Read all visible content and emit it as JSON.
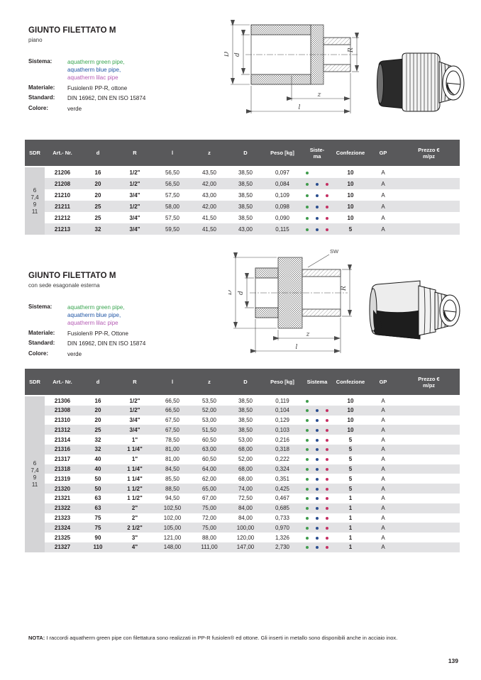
{
  "colors": {
    "header_bg": "#59595b",
    "row_alt": "#e2e2e4",
    "sdr_col": "#d4d4d6",
    "dot_green": "#3f9c4c",
    "dot_blue": "#2a4d8f",
    "dot_red": "#c52f63"
  },
  "labels": {
    "D": "D",
    "d": "d",
    "R": "R",
    "z": "z",
    "l": "l",
    "sw": "SW"
  },
  "note": {
    "label": "NOTA:",
    "text": " I raccordi aquatherm green pipe con filettatura sono realizzati in PP-R fusiolen® ed ottone. Gli inserti in metallo sono disponibili anche in acciaio inox."
  },
  "page_number": "139",
  "sections": [
    {
      "title": "GIUNTO FILETTATO M",
      "subtitle": "piano",
      "info": [
        {
          "label": "Sistema:",
          "lines": [
            {
              "text": "aquatherm green pipe,",
              "color": "#3aa551"
            },
            {
              "text": "aquatherm blue pipe,",
              "color": "#2156a5"
            },
            {
              "text": "aquatherm lilac pipe",
              "color": "#b55cb4"
            }
          ]
        },
        {
          "label": "Materiale:",
          "lines": [
            {
              "text": "Fusiolen® PP-R, ottone",
              "color": "#231f20"
            }
          ]
        },
        {
          "label": "Standard:",
          "lines": [
            {
              "text": "DIN 16962, DIN EN ISO 15874",
              "color": "#231f20"
            }
          ]
        },
        {
          "label": "Colore:",
          "lines": [
            {
              "text": "verde",
              "color": "#231f20"
            }
          ]
        }
      ],
      "table": {
        "headers": [
          [
            "SDR"
          ],
          [
            "Art.- Nr."
          ],
          [
            "d"
          ],
          [
            "R"
          ],
          [
            "l"
          ],
          [
            "z"
          ],
          [
            "D"
          ],
          [
            "Peso [kg]"
          ],
          [
            "Siste-",
            "ma"
          ],
          [
            "Confezione"
          ],
          [
            "GP"
          ],
          [
            "Prezzo €",
            "m/pz"
          ]
        ],
        "sdr_values": [
          "6",
          "7,4",
          "9",
          "11"
        ],
        "rows": [
          {
            "art": "21206",
            "d": "16",
            "R": "1/2\"",
            "l": "56,50",
            "z": "43,50",
            "D": "38,50",
            "peso": "0,097",
            "sistema": [
              "green"
            ],
            "confezione": "10",
            "gp": "A",
            "prezzo": ""
          },
          {
            "art": "21208",
            "d": "20",
            "R": "1/2\"",
            "l": "56,50",
            "z": "42,00",
            "D": "38,50",
            "peso": "0,084",
            "sistema": [
              "green",
              "blue",
              "red"
            ],
            "confezione": "10",
            "gp": "A",
            "prezzo": ""
          },
          {
            "art": "21210",
            "d": "20",
            "R": "3/4\"",
            "l": "57,50",
            "z": "43,00",
            "D": "38,50",
            "peso": "0,109",
            "sistema": [
              "green",
              "blue",
              "red"
            ],
            "confezione": "10",
            "gp": "A",
            "prezzo": ""
          },
          {
            "art": "21211",
            "d": "25",
            "R": "1/2\"",
            "l": "58,00",
            "z": "42,00",
            "D": "38,50",
            "peso": "0,098",
            "sistema": [
              "green",
              "blue",
              "red"
            ],
            "confezione": "10",
            "gp": "A",
            "prezzo": ""
          },
          {
            "art": "21212",
            "d": "25",
            "R": "3/4\"",
            "l": "57,50",
            "z": "41,50",
            "D": "38,50",
            "peso": "0,090",
            "sistema": [
              "green",
              "blue",
              "red"
            ],
            "confezione": "10",
            "gp": "A",
            "prezzo": ""
          },
          {
            "art": "21213",
            "d": "32",
            "R": "3/4\"",
            "l": "59,50",
            "z": "41,50",
            "D": "43,00",
            "peso": "0,115",
            "sistema": [
              "green",
              "blue",
              "red"
            ],
            "confezione": "5",
            "gp": "A",
            "prezzo": ""
          }
        ]
      }
    },
    {
      "title": "GIUNTO FILETTATO M",
      "subtitle": "con sede esagonale esterna",
      "info": [
        {
          "label": "Sistema:",
          "lines": [
            {
              "text": "aquatherm green pipe,",
              "color": "#3aa551"
            },
            {
              "text": "aquatherm blue pipe,",
              "color": "#2156a5"
            },
            {
              "text": "aquatherm lilac pipe",
              "color": "#b55cb4"
            }
          ]
        },
        {
          "label": "Materiale:",
          "lines": [
            {
              "text": "Fusiolen® PP-R, Ottone",
              "color": "#231f20"
            }
          ]
        },
        {
          "label": "Standard:",
          "lines": [
            {
              "text": "DIN 16962, DIN EN ISO 15874",
              "color": "#231f20"
            }
          ]
        },
        {
          "label": "Colore:",
          "lines": [
            {
              "text": "verde",
              "color": "#231f20"
            }
          ]
        }
      ],
      "table": {
        "headers": [
          [
            "SDR"
          ],
          [
            "Art.- Nr."
          ],
          [
            "d"
          ],
          [
            "R"
          ],
          [
            "l"
          ],
          [
            "z"
          ],
          [
            "D"
          ],
          [
            "Peso [kg]"
          ],
          [
            "Sistema"
          ],
          [
            "Confezione"
          ],
          [
            "GP"
          ],
          [
            "Prezzo €",
            "m/pz"
          ]
        ],
        "sdr_values": [
          "6",
          "7,4",
          "9",
          "11"
        ],
        "rows": [
          {
            "art": "21306",
            "d": "16",
            "R": "1/2\"",
            "l": "66,50",
            "z": "53,50",
            "D": "38,50",
            "peso": "0,119",
            "sistema": [
              "green"
            ],
            "confezione": "10",
            "gp": "A",
            "prezzo": ""
          },
          {
            "art": "21308",
            "d": "20",
            "R": "1/2\"",
            "l": "66,50",
            "z": "52,00",
            "D": "38,50",
            "peso": "0,104",
            "sistema": [
              "green",
              "blue",
              "red"
            ],
            "confezione": "10",
            "gp": "A",
            "prezzo": ""
          },
          {
            "art": "21310",
            "d": "20",
            "R": "3/4\"",
            "l": "67,50",
            "z": "53,00",
            "D": "38,50",
            "peso": "0,129",
            "sistema": [
              "green",
              "blue",
              "red"
            ],
            "confezione": "10",
            "gp": "A",
            "prezzo": ""
          },
          {
            "art": "21312",
            "d": "25",
            "R": "3/4\"",
            "l": "67,50",
            "z": "51,50",
            "D": "38,50",
            "peso": "0,103",
            "sistema": [
              "green",
              "blue",
              "red"
            ],
            "confezione": "10",
            "gp": "A",
            "prezzo": ""
          },
          {
            "art": "21314",
            "d": "32",
            "R": "1\"",
            "l": "78,50",
            "z": "60,50",
            "D": "53,00",
            "peso": "0,216",
            "sistema": [
              "green",
              "blue",
              "red"
            ],
            "confezione": "5",
            "gp": "A",
            "prezzo": ""
          },
          {
            "art": "21316",
            "d": "32",
            "R": "1 1/4\"",
            "l": "81,00",
            "z": "63,00",
            "D": "68,00",
            "peso": "0,318",
            "sistema": [
              "green",
              "blue",
              "red"
            ],
            "confezione": "5",
            "gp": "A",
            "prezzo": ""
          },
          {
            "art": "21317",
            "d": "40",
            "R": "1\"",
            "l": "81,00",
            "z": "60,50",
            "D": "52,00",
            "peso": "0,222",
            "sistema": [
              "green",
              "blue",
              "red"
            ],
            "confezione": "5",
            "gp": "A",
            "prezzo": ""
          },
          {
            "art": "21318",
            "d": "40",
            "R": "1 1/4\"",
            "l": "84,50",
            "z": "64,00",
            "D": "68,00",
            "peso": "0,324",
            "sistema": [
              "green",
              "blue",
              "red"
            ],
            "confezione": "5",
            "gp": "A",
            "prezzo": ""
          },
          {
            "art": "21319",
            "d": "50",
            "R": "1 1/4\"",
            "l": "85,50",
            "z": "62,00",
            "D": "68,00",
            "peso": "0,351",
            "sistema": [
              "green",
              "blue",
              "red"
            ],
            "confezione": "5",
            "gp": "A",
            "prezzo": ""
          },
          {
            "art": "21320",
            "d": "50",
            "R": "1 1/2\"",
            "l": "88,50",
            "z": "65,00",
            "D": "74,00",
            "peso": "0,425",
            "sistema": [
              "green",
              "blue",
              "red"
            ],
            "confezione": "5",
            "gp": "A",
            "prezzo": ""
          },
          {
            "art": "21321",
            "d": "63",
            "R": "1 1/2\"",
            "l": "94,50",
            "z": "67,00",
            "D": "72,50",
            "peso": "0,467",
            "sistema": [
              "green",
              "blue",
              "red"
            ],
            "confezione": "1",
            "gp": "A",
            "prezzo": ""
          },
          {
            "art": "21322",
            "d": "63",
            "R": "2\"",
            "l": "102,50",
            "z": "75,00",
            "D": "84,00",
            "peso": "0,685",
            "sistema": [
              "green",
              "blue",
              "red"
            ],
            "confezione": "1",
            "gp": "A",
            "prezzo": ""
          },
          {
            "art": "21323",
            "d": "75",
            "R": "2\"",
            "l": "102,00",
            "z": "72,00",
            "D": "84,00",
            "peso": "0,733",
            "sistema": [
              "green",
              "blue",
              "red"
            ],
            "confezione": "1",
            "gp": "A",
            "prezzo": ""
          },
          {
            "art": "21324",
            "d": "75",
            "R": "2 1/2\"",
            "l": "105,00",
            "z": "75,00",
            "D": "100,00",
            "peso": "0,970",
            "sistema": [
              "green",
              "blue",
              "red"
            ],
            "confezione": "1",
            "gp": "A",
            "prezzo": ""
          },
          {
            "art": "21325",
            "d": "90",
            "R": "3\"",
            "l": "121,00",
            "z": "88,00",
            "D": "120,00",
            "peso": "1,326",
            "sistema": [
              "green",
              "blue",
              "red"
            ],
            "confezione": "1",
            "gp": "A",
            "prezzo": ""
          },
          {
            "art": "21327",
            "d": "110",
            "R": "4\"",
            "l": "148,00",
            "z": "111,00",
            "D": "147,00",
            "peso": "2,730",
            "sistema": [
              "green",
              "blue",
              "red"
            ],
            "confezione": "1",
            "gp": "A",
            "prezzo": ""
          }
        ]
      }
    }
  ]
}
